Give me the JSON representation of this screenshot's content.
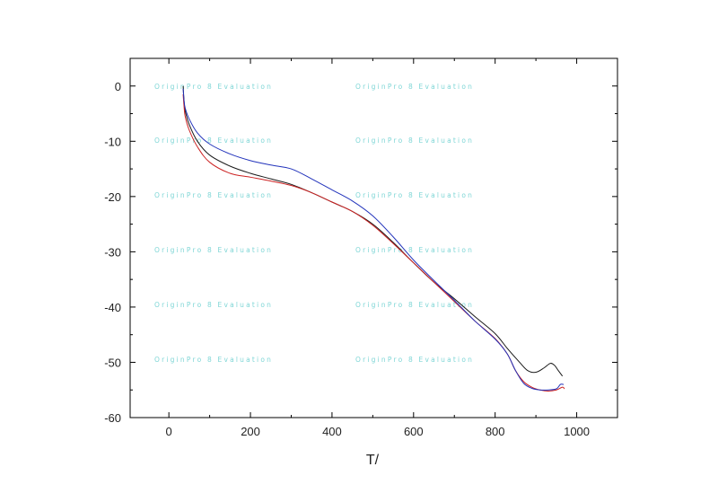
{
  "watermark_text": "OriginPro 8 Evaluation",
  "chart_data": {
    "type": "line",
    "title": "",
    "xlabel": "T/",
    "ylabel": "",
    "xlim": [
      -95,
      1100
    ],
    "ylim": [
      -60,
      5
    ],
    "xticks": [
      0,
      200,
      400,
      600,
      800,
      1000
    ],
    "yticks": [
      0,
      -10,
      -20,
      -30,
      -40,
      -50,
      -60
    ],
    "xtick_labels": [
      "0",
      "200",
      "400",
      "600",
      "800",
      "1000"
    ],
    "ytick_labels": [
      "0",
      "-10",
      "-20",
      "-30",
      "-40",
      "-50",
      "-60"
    ],
    "grid": false,
    "legend": "none",
    "series": [
      {
        "color": "#1a1a1a",
        "x": [
          35,
          37,
          40,
          50,
          70,
          100,
          150,
          200,
          250,
          300,
          350,
          400,
          450,
          500,
          550,
          600,
          650,
          700,
          750,
          800,
          830,
          860,
          880,
          900,
          920,
          935,
          945,
          955,
          965
        ],
        "y": [
          0,
          -2.5,
          -4.5,
          -7,
          -10,
          -12.5,
          -14.5,
          -15.8,
          -16.8,
          -17.8,
          -19.3,
          -21,
          -22.7,
          -25,
          -28.3,
          -32,
          -35.5,
          -38.5,
          -41.7,
          -44.8,
          -47.5,
          -50,
          -51.5,
          -51.8,
          -51,
          -50.2,
          -50.5,
          -51.5,
          -52.5
        ]
      },
      {
        "color": "#cc2222",
        "x": [
          35,
          37,
          40,
          50,
          70,
          100,
          150,
          200,
          250,
          300,
          350,
          400,
          450,
          500,
          550,
          600,
          650,
          700,
          750,
          800,
          830,
          850,
          870,
          890,
          910,
          930,
          950,
          965,
          970
        ],
        "y": [
          -1.5,
          -3.5,
          -5.5,
          -8,
          -11,
          -13.8,
          -15.8,
          -16.5,
          -17.2,
          -18,
          -19.3,
          -21,
          -22.7,
          -25.2,
          -28.5,
          -32,
          -35.5,
          -39,
          -42.5,
          -45.7,
          -48.5,
          -51.5,
          -53.5,
          -54.5,
          -55,
          -55.2,
          -55,
          -54.5,
          -54.8
        ]
      },
      {
        "color": "#2233bb",
        "x": [
          35,
          37,
          40,
          50,
          70,
          100,
          150,
          200,
          250,
          300,
          350,
          400,
          450,
          500,
          550,
          600,
          650,
          700,
          750,
          800,
          830,
          850,
          870,
          890,
          910,
          930,
          950,
          960,
          968
        ],
        "y": [
          -0.5,
          -2.5,
          -4,
          -6,
          -8.5,
          -10.5,
          -12.3,
          -13.5,
          -14.3,
          -15,
          -16.8,
          -18.8,
          -20.8,
          -23.5,
          -27.3,
          -31.5,
          -35.2,
          -38.8,
          -42.5,
          -45.8,
          -48.5,
          -51.5,
          -53.8,
          -54.7,
          -55,
          -55,
          -54.8,
          -54,
          -54
        ]
      }
    ]
  }
}
